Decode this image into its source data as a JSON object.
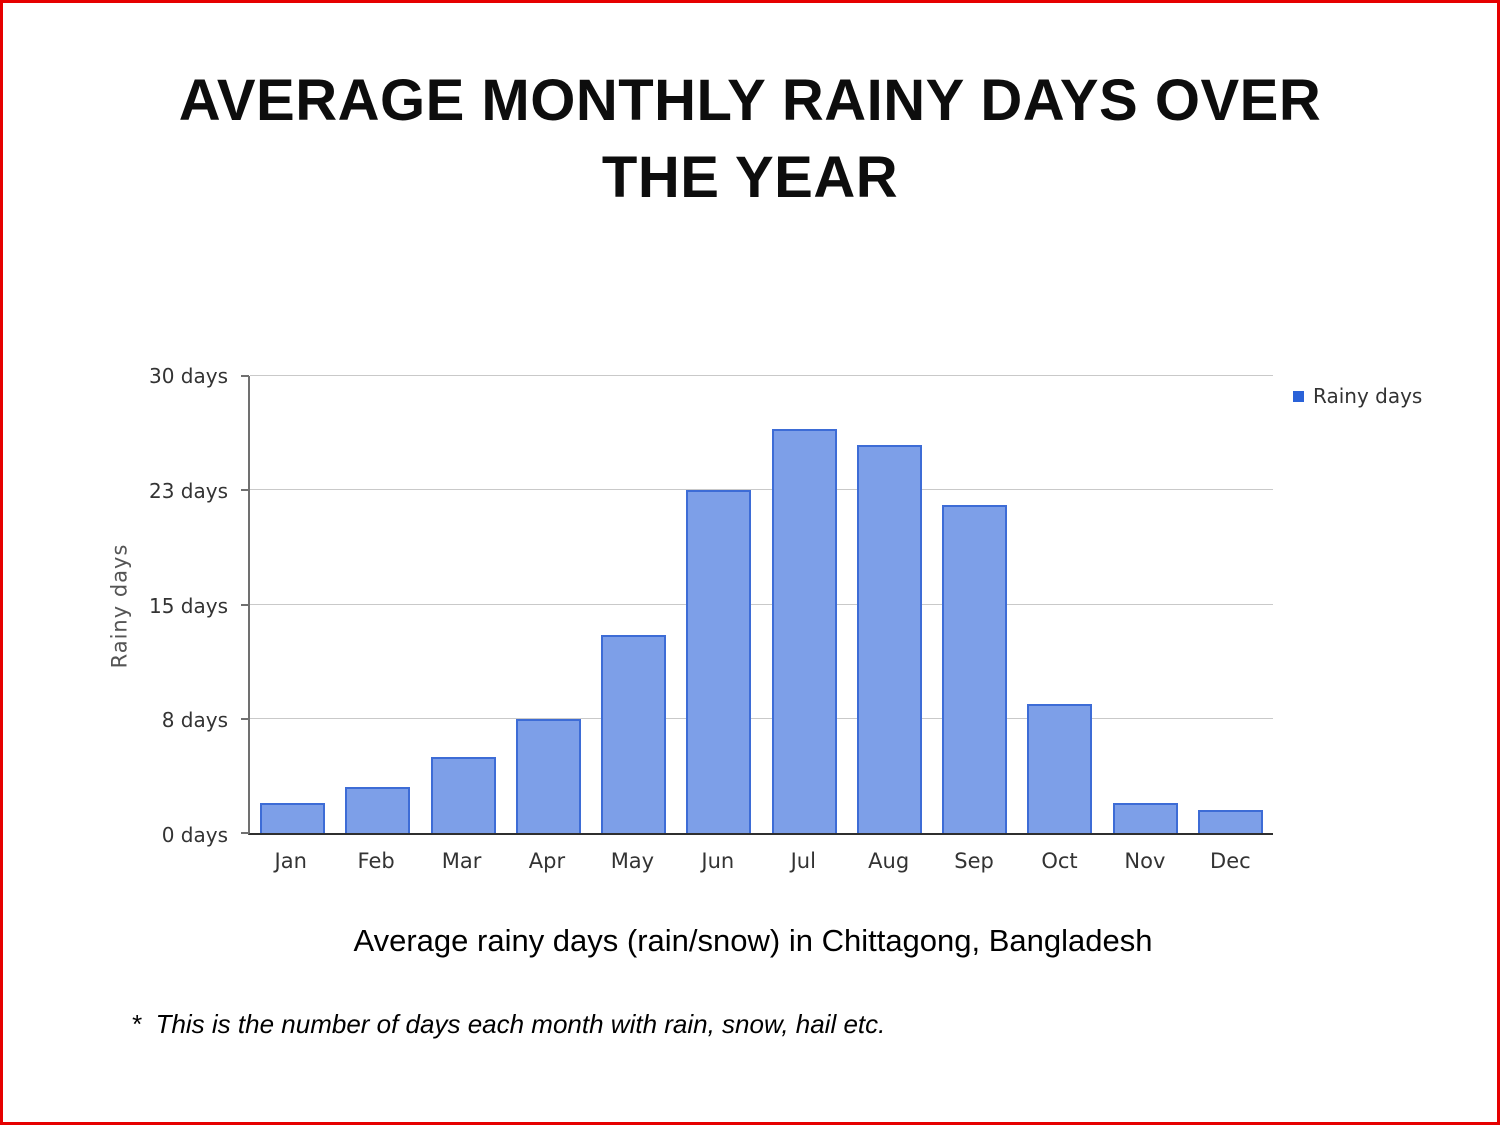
{
  "page": {
    "title_line1": "AVERAGE MONTHLY RAINY DAYS OVER",
    "title_line2": "THE YEAR",
    "footnote": "*  This is the number of days each month with rain, snow, hail etc.",
    "border_color": "#e60000"
  },
  "chart_data": {
    "type": "bar",
    "title": "Average rainy days (rain/snow) in Chittagong, Bangladesh",
    "ylabel": "Rainy days",
    "xlabel": "",
    "categories": [
      "Jan",
      "Feb",
      "Mar",
      "Apr",
      "May",
      "Jun",
      "Jul",
      "Aug",
      "Sep",
      "Oct",
      "Nov",
      "Dec"
    ],
    "series": [
      {
        "name": "Rainy days",
        "values": [
          2,
          3,
          5,
          7.5,
          13,
          22.5,
          26.5,
          25.5,
          21.5,
          8.5,
          2,
          1.5
        ]
      }
    ],
    "values": [
      2,
      3,
      5,
      7.5,
      13,
      22.5,
      26.5,
      25.5,
      21.5,
      8.5,
      2,
      1.5
    ],
    "ylim": [
      0,
      30
    ],
    "ytick_labels": [
      "0 days",
      "8 days",
      "15 days",
      "23 days",
      "30 days"
    ],
    "grid": true,
    "legend": {
      "label": "Rainy days",
      "position": "top-right",
      "swatch_color": "#2a62d8"
    },
    "bar_fill": "#7d9fe8",
    "bar_border": "#3d6cd6"
  }
}
